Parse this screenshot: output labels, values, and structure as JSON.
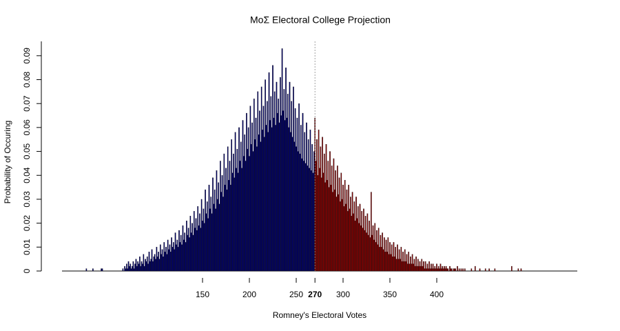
{
  "chart_data": {
    "type": "bar",
    "title": "MoΣ Electoral College Projection",
    "x_label": "Romney's Electoral Votes",
    "y_label": "Probability of Occuring",
    "xlim": [
      0,
      550
    ],
    "xticks": [
      150,
      200,
      250,
      270,
      300,
      350,
      400
    ],
    "highlight_x": 270,
    "ylim": [
      0,
      0.096
    ],
    "yticks": [
      0,
      0.01,
      0.02,
      0.03,
      0.04,
      0.05,
      0.06,
      0.07,
      0.08,
      0.09
    ],
    "grid": false,
    "series": [
      {
        "color": "#000066",
        "x": [
          26,
          33,
          42,
          43,
          65,
          66,
          67,
          68,
          69,
          70,
          71,
          72,
          73,
          74,
          75,
          76,
          77,
          78,
          79,
          80,
          81,
          82,
          83,
          84,
          85,
          86,
          87,
          88,
          89,
          90,
          91,
          92,
          93,
          94,
          95,
          96,
          97,
          98,
          99,
          100,
          101,
          102,
          103,
          104,
          105,
          106,
          107,
          108,
          109,
          110,
          111,
          112,
          113,
          114,
          115,
          116,
          117,
          118,
          119,
          120,
          121,
          122,
          123,
          124,
          125,
          126,
          127,
          128,
          129,
          130,
          131,
          132,
          133,
          134,
          135,
          136,
          137,
          138,
          139,
          140,
          141,
          142,
          143,
          144,
          145,
          146,
          147,
          148,
          149,
          150,
          151,
          152,
          153,
          154,
          155,
          156,
          157,
          158,
          159,
          160,
          161,
          162,
          163,
          164,
          165,
          166,
          167,
          168,
          169,
          170,
          171,
          172,
          173,
          174,
          175,
          176,
          177,
          178,
          179,
          180,
          181,
          182,
          183,
          184,
          185,
          186,
          187,
          188,
          189,
          190,
          191,
          192,
          193,
          194,
          195,
          196,
          197,
          198,
          199,
          200,
          201,
          202,
          203,
          204,
          205,
          206,
          207,
          208,
          209,
          210,
          211,
          212,
          213,
          214,
          215,
          216,
          217,
          218,
          219,
          220,
          221,
          222,
          223,
          224,
          225,
          226,
          227,
          228,
          229,
          230,
          231,
          232,
          233,
          234,
          235,
          236,
          237,
          238,
          239,
          240,
          241,
          242,
          243,
          244,
          245,
          246,
          247,
          248,
          249,
          250,
          251,
          252,
          253,
          254,
          255,
          256,
          257,
          258,
          259,
          260,
          261,
          262,
          263,
          264,
          265,
          266,
          267,
          268,
          269
        ],
        "values": [
          0.001,
          0.001,
          0.001,
          0.001,
          0.001,
          0,
          0.002,
          0.001,
          0.003,
          0.001,
          0.004,
          0.002,
          0.003,
          0.001,
          0.002,
          0.004,
          0.001,
          0.003,
          0.005,
          0.002,
          0.004,
          0.003,
          0.006,
          0.002,
          0.004,
          0.003,
          0.007,
          0.002,
          0.005,
          0.004,
          0.006,
          0.003,
          0.008,
          0.004,
          0.005,
          0.009,
          0.004,
          0.006,
          0.007,
          0.005,
          0.01,
          0.006,
          0.008,
          0.005,
          0.011,
          0.007,
          0.009,
          0.006,
          0.012,
          0.008,
          0.01,
          0.007,
          0.013,
          0.009,
          0.011,
          0.008,
          0.014,
          0.01,
          0.012,
          0.009,
          0.016,
          0.011,
          0.013,
          0.01,
          0.017,
          0.012,
          0.015,
          0.011,
          0.019,
          0.013,
          0.016,
          0.012,
          0.021,
          0.015,
          0.018,
          0.014,
          0.023,
          0.016,
          0.02,
          0.015,
          0.025,
          0.018,
          0.022,
          0.017,
          0.027,
          0.019,
          0.024,
          0.018,
          0.03,
          0.021,
          0.026,
          0.02,
          0.034,
          0.024,
          0.029,
          0.022,
          0.036,
          0.026,
          0.031,
          0.024,
          0.039,
          0.028,
          0.034,
          0.026,
          0.042,
          0.03,
          0.037,
          0.028,
          0.046,
          0.033,
          0.04,
          0.031,
          0.049,
          0.036,
          0.043,
          0.034,
          0.052,
          0.038,
          0.046,
          0.036,
          0.055,
          0.041,
          0.049,
          0.039,
          0.058,
          0.043,
          0.051,
          0.041,
          0.06,
          0.046,
          0.054,
          0.043,
          0.063,
          0.048,
          0.057,
          0.046,
          0.066,
          0.051,
          0.06,
          0.048,
          0.069,
          0.053,
          0.062,
          0.05,
          0.072,
          0.055,
          0.064,
          0.052,
          0.075,
          0.057,
          0.067,
          0.054,
          0.077,
          0.059,
          0.069,
          0.056,
          0.08,
          0.061,
          0.071,
          0.058,
          0.083,
          0.063,
          0.073,
          0.06,
          0.086,
          0.064,
          0.075,
          0.061,
          0.079,
          0.066,
          0.072,
          0.062,
          0.081,
          0.065,
          0.093,
          0.067,
          0.076,
          0.063,
          0.085,
          0.064,
          0.074,
          0.06,
          0.079,
          0.058,
          0.071,
          0.056,
          0.077,
          0.054,
          0.068,
          0.052,
          0.064,
          0.05,
          0.07,
          0.049,
          0.061,
          0.047,
          0.066,
          0.046,
          0.058,
          0.045,
          0.062,
          0.044,
          0.055,
          0.043,
          0.059,
          0.042,
          0.053,
          0.041,
          0.05
        ]
      },
      {
        "color": "#800000",
        "x": [
          270,
          271,
          272,
          273,
          274,
          275,
          276,
          277,
          278,
          279,
          280,
          281,
          282,
          283,
          284,
          285,
          286,
          287,
          288,
          289,
          290,
          291,
          292,
          293,
          294,
          295,
          296,
          297,
          298,
          299,
          300,
          301,
          302,
          303,
          304,
          305,
          306,
          307,
          308,
          309,
          310,
          311,
          312,
          313,
          314,
          315,
          316,
          317,
          318,
          319,
          320,
          321,
          322,
          323,
          324,
          325,
          326,
          327,
          328,
          329,
          330,
          331,
          332,
          333,
          334,
          335,
          336,
          337,
          338,
          339,
          340,
          341,
          342,
          343,
          344,
          345,
          346,
          347,
          348,
          349,
          350,
          351,
          352,
          353,
          354,
          355,
          356,
          357,
          358,
          359,
          360,
          361,
          362,
          363,
          364,
          365,
          366,
          367,
          368,
          369,
          370,
          371,
          372,
          373,
          374,
          375,
          376,
          377,
          378,
          379,
          380,
          381,
          382,
          383,
          384,
          385,
          386,
          387,
          388,
          389,
          390,
          391,
          392,
          393,
          394,
          395,
          396,
          397,
          398,
          399,
          400,
          401,
          402,
          403,
          404,
          405,
          406,
          407,
          408,
          409,
          410,
          411,
          412,
          413,
          414,
          415,
          416,
          417,
          418,
          419,
          420,
          421,
          422,
          423,
          424,
          425,
          426,
          427,
          428,
          429,
          430,
          437,
          441,
          446,
          452,
          456,
          462,
          480,
          487,
          490
        ],
        "values": [
          0.064,
          0.046,
          0.055,
          0.04,
          0.059,
          0.043,
          0.052,
          0.039,
          0.056,
          0.041,
          0.049,
          0.037,
          0.053,
          0.038,
          0.046,
          0.035,
          0.05,
          0.036,
          0.044,
          0.033,
          0.047,
          0.034,
          0.042,
          0.031,
          0.044,
          0.032,
          0.039,
          0.029,
          0.041,
          0.03,
          0.036,
          0.027,
          0.038,
          0.028,
          0.034,
          0.025,
          0.036,
          0.026,
          0.031,
          0.023,
          0.033,
          0.024,
          0.029,
          0.021,
          0.031,
          0.022,
          0.027,
          0.02,
          0.028,
          0.019,
          0.025,
          0.018,
          0.026,
          0.017,
          0.023,
          0.016,
          0.024,
          0.015,
          0.021,
          0.014,
          0.033,
          0.015,
          0.019,
          0.013,
          0.02,
          0.012,
          0.017,
          0.011,
          0.018,
          0.01,
          0.015,
          0.01,
          0.016,
          0.009,
          0.014,
          0.008,
          0.013,
          0.008,
          0.014,
          0.007,
          0.012,
          0.007,
          0.011,
          0.006,
          0.012,
          0.006,
          0.01,
          0.005,
          0.011,
          0.005,
          0.009,
          0.005,
          0.01,
          0.004,
          0.008,
          0.004,
          0.009,
          0.004,
          0.007,
          0.003,
          0.008,
          0.003,
          0.006,
          0.003,
          0.007,
          0.003,
          0.005,
          0.002,
          0.006,
          0.002,
          0.005,
          0.002,
          0.004,
          0.002,
          0.005,
          0.002,
          0.004,
          0.001,
          0.004,
          0.001,
          0.003,
          0.001,
          0.004,
          0.001,
          0.003,
          0.001,
          0.003,
          0.001,
          0.002,
          0.001,
          0.003,
          0.001,
          0.002,
          0.001,
          0.003,
          0.001,
          0.002,
          0.001,
          0.002,
          0.001,
          0.002,
          0.001,
          0.001,
          0,
          0.002,
          0.001,
          0.001,
          0,
          0.001,
          0.001,
          0.001,
          0,
          0.002,
          0,
          0.001,
          0,
          0.001,
          0,
          0.001,
          0,
          0.001,
          0.001,
          0.002,
          0.001,
          0.001,
          0.001,
          0.001,
          0.002,
          0.001,
          0.001
        ]
      }
    ]
  }
}
